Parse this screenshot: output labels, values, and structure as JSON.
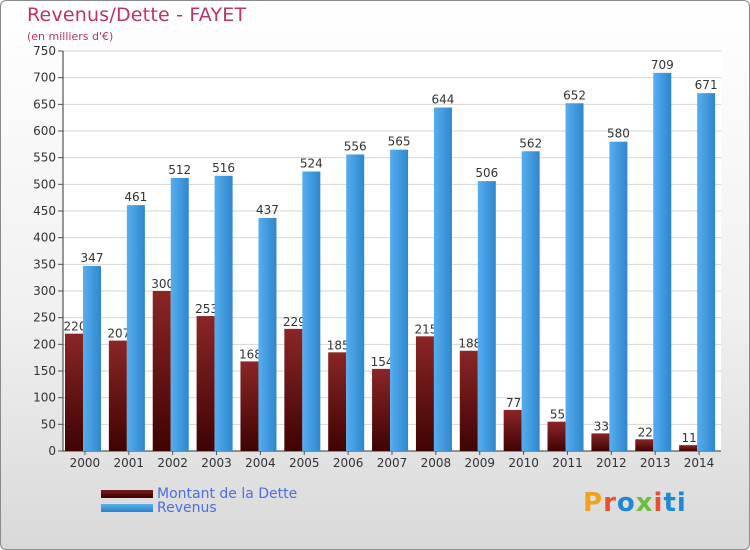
{
  "chart_data": {
    "type": "bar",
    "title": "Revenus/Dette - FAYET",
    "subtitle": "(en milliers d'€)",
    "categories": [
      "2000",
      "2001",
      "2002",
      "2003",
      "2004",
      "2005",
      "2006",
      "2007",
      "2008",
      "2009",
      "2010",
      "2011",
      "2012",
      "2013",
      "2014"
    ],
    "series": [
      {
        "name": "Montant de la Dette",
        "values": [
          220,
          207,
          300,
          253,
          168,
          229,
          185,
          154,
          215,
          188,
          77,
          55,
          33,
          22,
          11
        ],
        "color": "#7a1c1c"
      },
      {
        "name": "Revenus",
        "values": [
          347,
          461,
          512,
          516,
          437,
          524,
          556,
          565,
          644,
          506,
          562,
          652,
          580,
          709,
          671
        ],
        "color": "#3d9be3"
      }
    ],
    "ylim": [
      0,
      750
    ],
    "yticks": [
      0,
      50,
      100,
      150,
      200,
      250,
      300,
      350,
      400,
      450,
      500,
      550,
      600,
      650,
      700,
      750
    ],
    "grid": true,
    "legend_position": "bottom-left"
  },
  "logo": {
    "text": "Proxiti",
    "letters": [
      "P",
      "r",
      "o",
      "x",
      "i",
      "ti"
    ]
  }
}
